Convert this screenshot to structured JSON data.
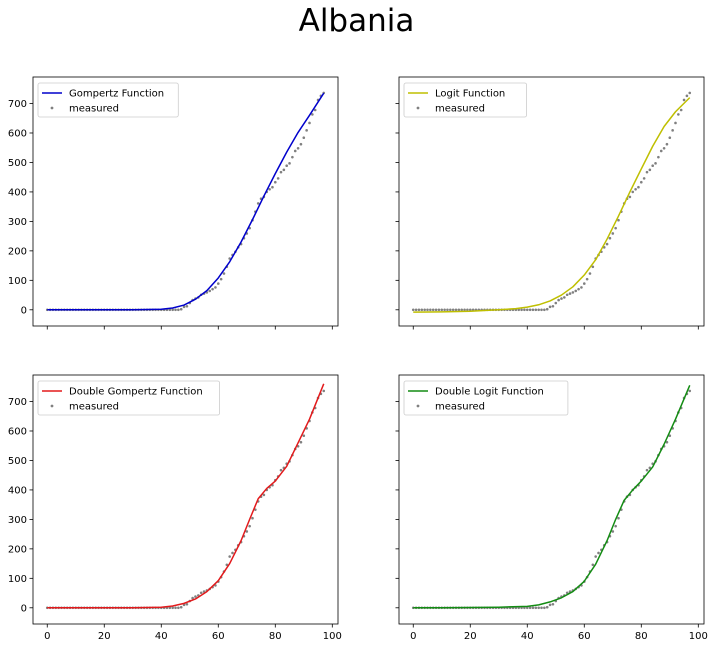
{
  "figure": {
    "title": "Albania",
    "background": "#ffffff"
  },
  "chart_data": [
    {
      "type": "line",
      "fit_name": "Gompertz Function",
      "fit_color": "#0000cc",
      "scatter_name": "measured",
      "scatter_color": "#808080",
      "legend_position": "top-left",
      "grid": false,
      "xlim": [
        -5,
        102
      ],
      "ylim": [
        -55,
        790
      ],
      "xticks": [
        0,
        20,
        40,
        60,
        80,
        100
      ],
      "yticks": [
        0,
        100,
        200,
        300,
        400,
        500,
        600,
        700
      ],
      "show_xticklabels": false,
      "show_yticklabels": true,
      "fit": {
        "x": [
          0,
          10,
          20,
          30,
          40,
          44,
          48,
          52,
          56,
          60,
          64,
          68,
          72,
          76,
          80,
          84,
          88,
          92,
          97
        ],
        "y": [
          0,
          0,
          0,
          0,
          2,
          6,
          16,
          36,
          65,
          108,
          163,
          230,
          306,
          386,
          462,
          535,
          602,
          660,
          735
        ]
      }
    },
    {
      "type": "line",
      "fit_name": "Logit Function",
      "fit_color": "#bfbf00",
      "scatter_name": "measured",
      "scatter_color": "#808080",
      "legend_position": "top-left",
      "grid": false,
      "xlim": [
        -5,
        102
      ],
      "ylim": [
        -55,
        790
      ],
      "xticks": [
        0,
        20,
        40,
        60,
        80,
        100
      ],
      "yticks": [
        0,
        100,
        200,
        300,
        400,
        500,
        600,
        700
      ],
      "show_xticklabels": false,
      "show_yticklabels": false,
      "fit": {
        "x": [
          0,
          10,
          20,
          30,
          36,
          40,
          44,
          48,
          52,
          56,
          60,
          64,
          68,
          72,
          76,
          80,
          84,
          88,
          92,
          97
        ],
        "y": [
          -8,
          -7,
          -5,
          0,
          4,
          9,
          17,
          30,
          50,
          78,
          118,
          170,
          240,
          318,
          400,
          478,
          555,
          622,
          672,
          720
        ]
      }
    },
    {
      "type": "line",
      "fit_name": "Double Gompertz Function",
      "fit_color": "#e31a1c",
      "scatter_name": "measured",
      "scatter_color": "#808080",
      "legend_position": "top-left",
      "grid": false,
      "xlim": [
        -5,
        102
      ],
      "ylim": [
        -55,
        790
      ],
      "xticks": [
        0,
        20,
        40,
        60,
        80,
        100
      ],
      "yticks": [
        0,
        100,
        200,
        300,
        400,
        500,
        600,
        700
      ],
      "show_xticklabels": true,
      "show_yticklabels": true,
      "fit": {
        "x": [
          0,
          10,
          20,
          30,
          40,
          44,
          48,
          52,
          56,
          60,
          64,
          68,
          71,
          74,
          77,
          80,
          84,
          88,
          92,
          97
        ],
        "y": [
          0,
          0,
          0,
          0,
          2,
          6,
          15,
          30,
          55,
          92,
          150,
          228,
          300,
          370,
          405,
          430,
          480,
          560,
          640,
          760
        ]
      }
    },
    {
      "type": "line",
      "fit_name": "Double Logit Function",
      "fit_color": "#138c13",
      "scatter_name": "measured",
      "scatter_color": "#808080",
      "legend_position": "top-left",
      "grid": false,
      "xlim": [
        -5,
        102
      ],
      "ylim": [
        -55,
        790
      ],
      "xticks": [
        0,
        20,
        40,
        60,
        80,
        100
      ],
      "yticks": [
        0,
        100,
        200,
        300,
        400,
        500,
        600,
        700
      ],
      "show_xticklabels": true,
      "show_yticklabels": false,
      "fit": {
        "x": [
          0,
          10,
          20,
          30,
          40,
          44,
          48,
          52,
          56,
          60,
          64,
          68,
          71,
          74,
          77,
          80,
          84,
          88,
          92,
          97
        ],
        "y": [
          0,
          0,
          1,
          2,
          5,
          10,
          20,
          34,
          55,
          90,
          148,
          228,
          300,
          365,
          400,
          430,
          478,
          555,
          640,
          755
        ]
      }
    }
  ],
  "measured": {
    "x": [
      0,
      1,
      2,
      3,
      4,
      5,
      6,
      7,
      8,
      9,
      10,
      11,
      12,
      13,
      14,
      15,
      16,
      17,
      18,
      19,
      20,
      21,
      22,
      23,
      24,
      25,
      26,
      27,
      28,
      29,
      30,
      31,
      32,
      33,
      34,
      35,
      36,
      37,
      38,
      39,
      40,
      41,
      42,
      43,
      44,
      45,
      46,
      47,
      48,
      49,
      50,
      51,
      52,
      53,
      54,
      55,
      56,
      57,
      58,
      59,
      60,
      61,
      62,
      63,
      64,
      65,
      66,
      67,
      68,
      69,
      70,
      71,
      72,
      73,
      74,
      75,
      76,
      77,
      78,
      79,
      80,
      81,
      82,
      83,
      84,
      85,
      86,
      87,
      88,
      89,
      90,
      91,
      92,
      93,
      94,
      95,
      96,
      97
    ],
    "y": [
      0,
      0,
      0,
      0,
      0,
      0,
      0,
      0,
      0,
      0,
      0,
      0,
      0,
      0,
      0,
      0,
      0,
      0,
      0,
      0,
      0,
      0,
      0,
      0,
      0,
      0,
      0,
      0,
      0,
      0,
      0,
      0,
      0,
      0,
      0,
      0,
      0,
      0,
      0,
      0,
      0,
      0,
      0,
      0,
      0,
      0,
      0,
      2,
      10,
      12,
      23,
      33,
      38,
      42,
      51,
      55,
      59,
      64,
      70,
      76,
      89,
      104,
      123,
      146,
      174,
      186,
      197,
      212,
      223,
      243,
      259,
      277,
      304,
      333,
      361,
      377,
      383,
      400,
      409,
      416,
      433,
      446,
      467,
      475,
      489,
      497,
      518,
      539,
      548,
      562,
      584,
      609,
      634,
      663,
      678,
      712,
      726,
      736
    ]
  }
}
